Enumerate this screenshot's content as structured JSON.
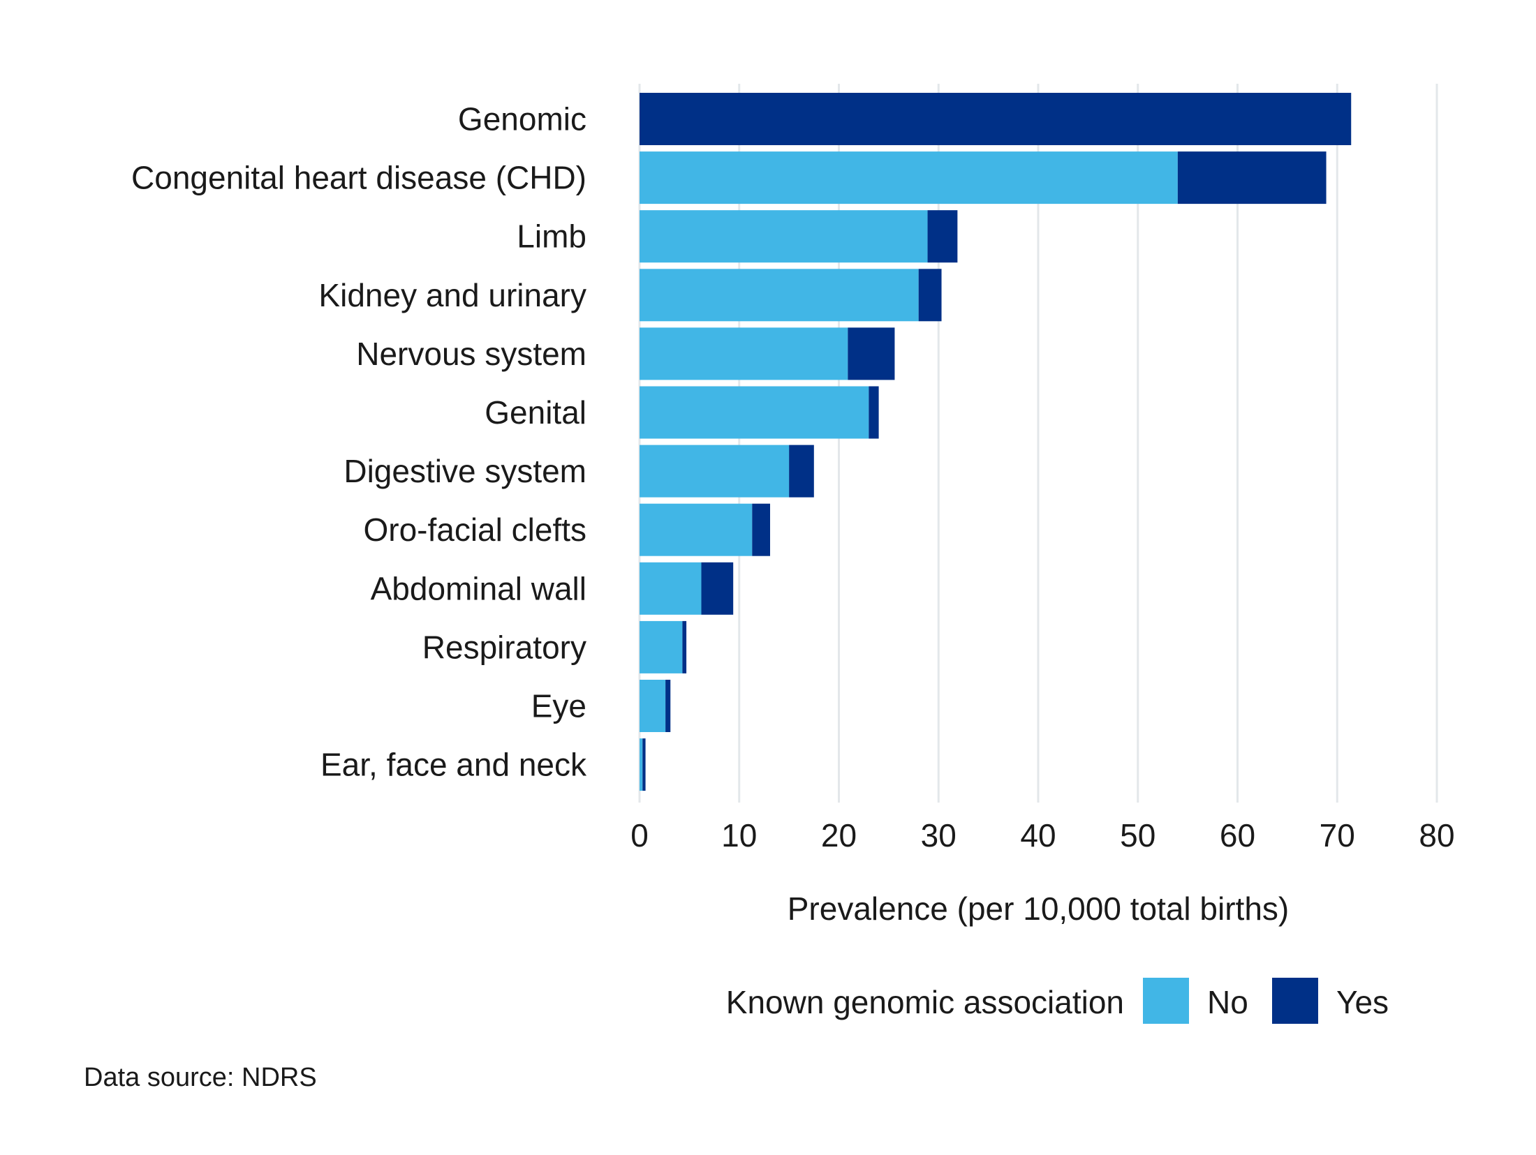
{
  "chart_data": {
    "type": "bar",
    "orientation": "horizontal",
    "stacked": true,
    "title": "",
    "xlabel": "Prevalence (per 10,000 total births)",
    "ylabel": "",
    "xlim": [
      0,
      80
    ],
    "x_ticks": [
      0,
      10,
      20,
      30,
      40,
      50,
      60,
      70,
      80
    ],
    "grid": "vertical",
    "categories": [
      "Genomic",
      "Congenital heart disease (CHD)",
      "Limb",
      "Kidney and urinary",
      "Nervous system",
      "Genital",
      "Digestive system",
      "Oro-facial clefts",
      "Abdominal wall",
      "Respiratory",
      "Eye",
      "Ear, face and neck"
    ],
    "series": [
      {
        "name": "No",
        "color": "#41b6e6",
        "values": [
          0,
          54.0,
          28.9,
          28.0,
          20.9,
          23.0,
          15.0,
          11.3,
          6.2,
          4.3,
          2.6,
          0.3
        ]
      },
      {
        "name": "Yes",
        "color": "#003087",
        "values": [
          71.4,
          14.9,
          3.0,
          2.3,
          4.7,
          1.0,
          2.5,
          1.8,
          3.2,
          0.4,
          0.5,
          0.3
        ]
      }
    ],
    "legend": {
      "title": "Known genomic association",
      "placement": "bottom",
      "entries": [
        "No",
        "Yes"
      ]
    },
    "caption": "Data source: NDRS"
  }
}
